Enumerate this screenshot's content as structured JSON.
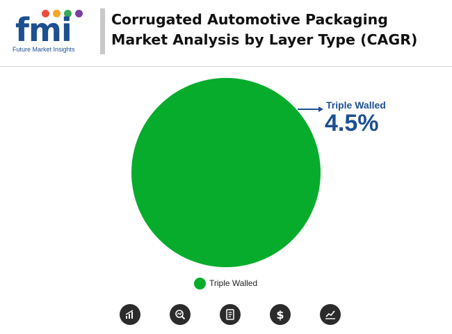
{
  "logo": {
    "wordmark": "fmi",
    "tagline": "Future Market Insights",
    "dot_colors": [
      "#e94e3c",
      "#f6a623",
      "#3aa857",
      "#7b3fa0"
    ]
  },
  "title": "Corrugated Automotive Packaging Market Analysis by Layer Type (CAGR)",
  "chart_data": {
    "type": "pie",
    "title": "Corrugated Automotive Packaging Market Analysis by Layer Type (CAGR)",
    "categories": [
      "Triple Walled"
    ],
    "values": [
      100
    ],
    "colors": [
      "#07ac2c"
    ],
    "annotations": [
      {
        "label": "Triple Walled",
        "value": "4.5%"
      }
    ],
    "legend": "bottom"
  },
  "callout": {
    "name": "Triple Walled",
    "value": "4.5%"
  },
  "legend": {
    "items": [
      {
        "label": "Triple Walled",
        "color": "#07ac2c"
      }
    ]
  },
  "footer_icons": [
    "bar-chart-icon",
    "magnifier-chart-icon",
    "document-icon",
    "dollar-icon",
    "trend-chart-icon"
  ]
}
